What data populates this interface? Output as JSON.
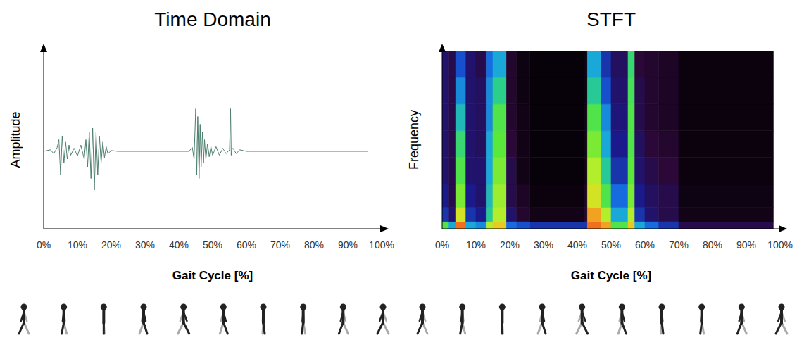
{
  "chart_data": [
    {
      "type": "line",
      "title": "Time Domain",
      "x_label": "Gait Cycle [%]",
      "y_label": "Amplitude",
      "x": [
        0,
        2,
        3,
        4,
        4.5,
        5,
        5.5,
        6,
        6.5,
        7,
        7.5,
        8,
        9,
        10,
        11,
        12,
        12.5,
        13,
        13.5,
        14,
        14.5,
        15,
        15.5,
        16,
        16.5,
        17,
        17.5,
        18,
        18.5,
        19,
        20,
        22,
        30,
        40,
        43,
        44,
        44.5,
        45,
        45.3,
        45.6,
        46,
        46.3,
        46.6,
        47,
        47.3,
        47.6,
        48,
        48.5,
        49,
        49.5,
        50,
        51,
        52,
        53,
        54,
        55,
        55.3,
        55.5,
        55.7,
        56,
        57,
        58,
        60,
        70,
        80,
        90,
        96
      ],
      "values": [
        0,
        0.02,
        -0.03,
        0.05,
        0.15,
        -0.3,
        0.2,
        -0.15,
        0.12,
        -0.1,
        0.08,
        -0.05,
        0.04,
        -0.06,
        0.08,
        -0.1,
        0.15,
        -0.2,
        0.25,
        -0.35,
        0.3,
        -0.5,
        0.25,
        -0.3,
        0.2,
        -0.15,
        0.12,
        -0.08,
        0.06,
        -0.03,
        0.01,
        0,
        0,
        0,
        0,
        0.05,
        -0.1,
        0.55,
        -0.3,
        0.45,
        -0.35,
        0.35,
        -0.2,
        0.25,
        -0.15,
        0.15,
        -0.1,
        0.1,
        -0.07,
        0.06,
        -0.05,
        0.06,
        -0.05,
        0.04,
        -0.03,
        0.02,
        0.55,
        -0.05,
        0.02,
        0.04,
        -0.03,
        0.02,
        0,
        0,
        0,
        0,
        0
      ],
      "color": "#4d7f6e",
      "xlim": [
        0,
        100
      ],
      "xticks": [
        {
          "value": 0,
          "label": "0%"
        },
        {
          "value": 10,
          "label": "10%"
        },
        {
          "value": 20,
          "label": "20%"
        },
        {
          "value": 30,
          "label": "30%"
        },
        {
          "value": 40,
          "label": "40%"
        },
        {
          "value": 50,
          "label": "50%"
        },
        {
          "value": 60,
          "label": "60%"
        },
        {
          "value": 70,
          "label": "70%"
        },
        {
          "value": 80,
          "label": "80%"
        },
        {
          "value": 90,
          "label": "90%"
        },
        {
          "value": 100,
          "label": "100%"
        }
      ],
      "ylim": [
        -1,
        1.3
      ],
      "tick_labels": "x",
      "grid": false
    },
    {
      "type": "heatmap",
      "title": "STFT",
      "x_label": "Gait Cycle [%]",
      "y_label": "Frequency",
      "x_edges": [
        0,
        2,
        4,
        7,
        10,
        13,
        15,
        19,
        22,
        26,
        42,
        43,
        47,
        50,
        55,
        57,
        60,
        64,
        70,
        98
      ],
      "y_edges": [
        0,
        0.04,
        0.12,
        0.25,
        0.4,
        0.55,
        0.7,
        0.85,
        1
      ],
      "cells": [
        [
          0.7,
          0.5,
          1.0,
          0.5,
          0.45,
          0.8,
          0.9,
          0.4,
          0.35,
          0.3,
          0.3,
          1.0,
          0.95,
          0.7,
          0.9,
          0.5,
          0.4,
          0.3,
          0.15
        ],
        [
          0.3,
          0.2,
          0.85,
          0.3,
          0.25,
          0.6,
          0.8,
          0.2,
          0.1,
          0.05,
          0.1,
          0.95,
          0.8,
          0.5,
          0.8,
          0.3,
          0.2,
          0.15,
          0.05
        ],
        [
          0.25,
          0.15,
          0.75,
          0.25,
          0.2,
          0.55,
          0.78,
          0.15,
          0.08,
          0.03,
          0.08,
          0.85,
          0.7,
          0.4,
          0.75,
          0.25,
          0.18,
          0.15,
          0.04
        ],
        [
          0.2,
          0.15,
          0.7,
          0.2,
          0.2,
          0.5,
          0.75,
          0.15,
          0.05,
          0.02,
          0.05,
          0.8,
          0.6,
          0.3,
          0.72,
          0.2,
          0.15,
          0.12,
          0.03
        ],
        [
          0.2,
          0.15,
          0.65,
          0.2,
          0.18,
          0.5,
          0.72,
          0.12,
          0.05,
          0.02,
          0.05,
          0.75,
          0.5,
          0.25,
          0.7,
          0.18,
          0.12,
          0.1,
          0.03
        ],
        [
          0.2,
          0.15,
          0.55,
          0.2,
          0.18,
          0.45,
          0.7,
          0.1,
          0.05,
          0.02,
          0.05,
          0.7,
          0.45,
          0.22,
          0.7,
          0.15,
          0.1,
          0.08,
          0.03
        ],
        [
          0.2,
          0.15,
          0.45,
          0.2,
          0.18,
          0.45,
          0.62,
          0.1,
          0.04,
          0.02,
          0.04,
          0.6,
          0.35,
          0.2,
          0.68,
          0.15,
          0.1,
          0.08,
          0.03
        ],
        [
          0.2,
          0.15,
          0.35,
          0.2,
          0.15,
          0.4,
          0.5,
          0.1,
          0.04,
          0.02,
          0.04,
          0.5,
          0.3,
          0.18,
          0.65,
          0.12,
          0.1,
          0.08,
          0.03
        ]
      ],
      "color_range": [
        0,
        1
      ],
      "xlim": [
        0,
        100
      ],
      "xticks": [
        {
          "value": 0,
          "label": "0%"
        },
        {
          "value": 10,
          "label": "10%"
        },
        {
          "value": 20,
          "label": "20%"
        },
        {
          "value": 30,
          "label": "30%"
        },
        {
          "value": 40,
          "label": "40%"
        },
        {
          "value": 50,
          "label": "50%"
        },
        {
          "value": 60,
          "label": "60%"
        },
        {
          "value": 70,
          "label": "70%"
        },
        {
          "value": 80,
          "label": "80%"
        },
        {
          "value": 90,
          "label": "90%"
        },
        {
          "value": 100,
          "label": "100%"
        }
      ],
      "ylim": [
        0,
        1
      ],
      "tick_labels": "x",
      "grid": false
    }
  ]
}
